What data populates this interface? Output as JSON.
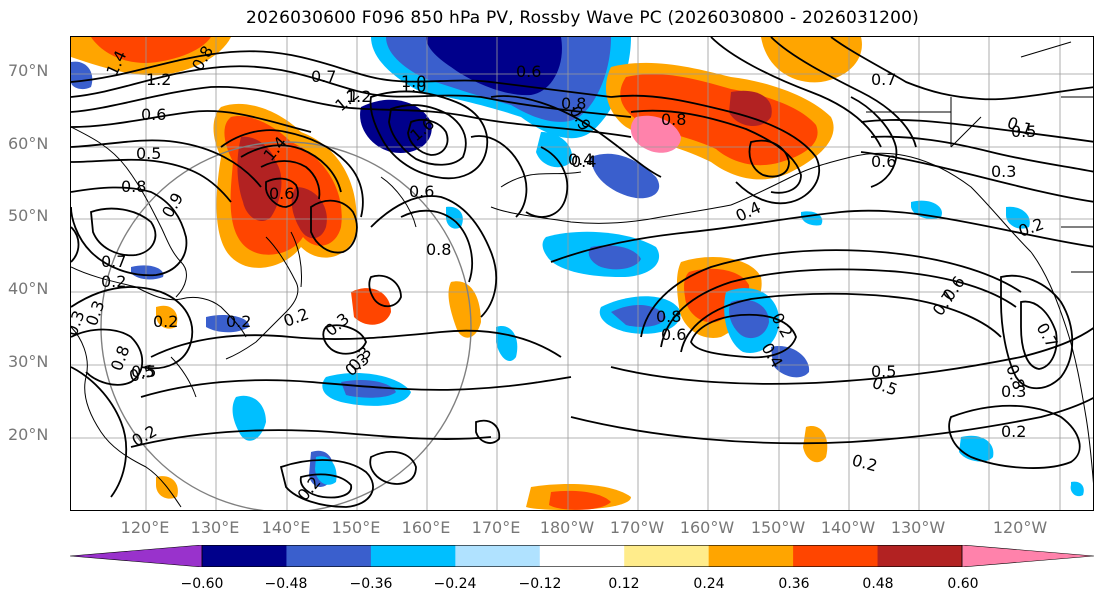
{
  "title": "2026030600 F096 850 hPa PV, Rossby Wave PC (2026030800 - 2026031200)",
  "lat_labels": [
    "70°N",
    "60°N",
    "50°N",
    "40°N",
    "30°N",
    "20°N"
  ],
  "lon_labels": [
    "120°E",
    "130°E",
    "140°E",
    "150°E",
    "160°E",
    "170°E",
    "180°W",
    "170°W",
    "160°W",
    "150°W",
    "140°W",
    "130°W",
    "120°W"
  ],
  "colorbar": {
    "ticks": [
      "−0.60",
      "−0.48",
      "−0.36",
      "−0.24",
      "−0.12",
      "0.12",
      "0.24",
      "0.36",
      "0.48",
      "0.60"
    ],
    "colors": [
      "#9932cc",
      "#00008b",
      "#3a5fcd",
      "#00bfff",
      "#b0e2ff",
      "#ffffff",
      "#ffec8b",
      "#ffa500",
      "#ff4500",
      "#b22222",
      "#ff82ab"
    ]
  },
  "contour_labels": [
    "1.4",
    "1.2",
    "0.8",
    "0.6",
    "0.5",
    "0.7",
    "1.0",
    "0.8",
    "0.6",
    "0.9",
    "1.4",
    "0.7",
    "0.6",
    "1.2",
    "1.6",
    "0.4",
    "0.9",
    "0.8",
    "0.4",
    "0.8",
    "0.6",
    "0.6",
    "0.8",
    "0.7",
    "0.5",
    "0.3",
    "0.2",
    "0.5",
    "0.3",
    "0.2",
    "0.4",
    "0.2",
    "0.3",
    "0.2",
    "0.3",
    "0.5",
    "0.7",
    "0.6",
    "0.7",
    "0.8",
    "0.3",
    "0.2",
    "0.3",
    "0.8",
    "0.2",
    "0.2",
    "0.2",
    "0.2",
    "0.3",
    "0.2",
    "0.5",
    "0.1",
    "1.0",
    "0.8",
    "0.6",
    "0.5",
    "1.2",
    "0.4"
  ]
}
